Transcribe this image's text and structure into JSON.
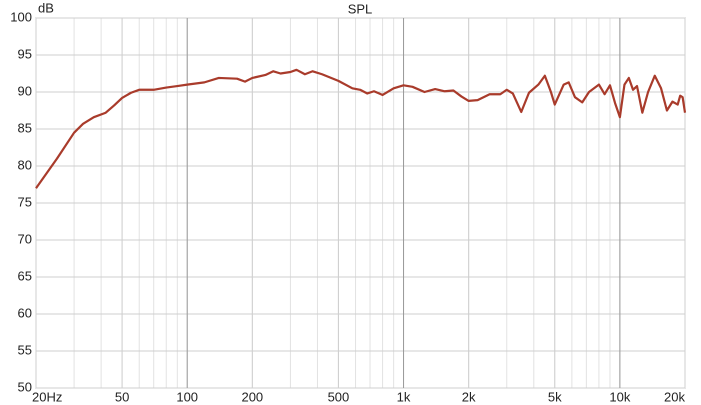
{
  "chart_data": {
    "type": "line",
    "title": "SPL",
    "y_label": "dB",
    "x_scale": "log",
    "grid": true,
    "minor_grid": true,
    "xlim": [
      20,
      20000
    ],
    "ylim": [
      50,
      100
    ],
    "xticks": [
      {
        "value": 20,
        "label": "20Hz"
      },
      50,
      100,
      200,
      500,
      {
        "value": 1000,
        "label": "1k"
      },
      {
        "value": 2000,
        "label": "2k"
      },
      {
        "value": 5000,
        "label": "5k"
      },
      {
        "value": 10000,
        "label": "10k"
      },
      {
        "value": 20000,
        "label": "20k"
      }
    ],
    "yticks": [
      50,
      55,
      60,
      65,
      70,
      75,
      80,
      85,
      90,
      95,
      100
    ],
    "x": [
      20,
      25,
      30,
      33,
      37,
      42,
      46,
      50,
      55,
      60,
      70,
      80,
      90,
      100,
      120,
      140,
      170,
      185,
      200,
      230,
      250,
      270,
      300,
      320,
      350,
      380,
      420,
      500,
      580,
      630,
      680,
      730,
      800,
      900,
      1000,
      1100,
      1250,
      1400,
      1550,
      1700,
      1850,
      2000,
      2200,
      2500,
      2800,
      3000,
      3200,
      3500,
      3800,
      4200,
      4500,
      4800,
      5000,
      5500,
      5800,
      6200,
      6700,
      7200,
      8000,
      8500,
      9000,
      9500,
      10000,
      10500,
      11000,
      11500,
      12000,
      12700,
      13500,
      14500,
      15500,
      16500,
      17500,
      18500,
      19000,
      19500,
      20000
    ],
    "series": [
      {
        "color": "#a93b2b",
        "values": [
          77,
          81,
          84.5,
          85.7,
          86.6,
          87.2,
          88.2,
          89.2,
          89.9,
          90.3,
          90.3,
          90.6,
          90.8,
          91.0,
          91.3,
          91.9,
          91.8,
          91.4,
          91.9,
          92.3,
          92.8,
          92.5,
          92.7,
          93.0,
          92.4,
          92.8,
          92.4,
          91.5,
          90.5,
          90.3,
          89.8,
          90.1,
          89.6,
          90.5,
          90.9,
          90.7,
          90.0,
          90.4,
          90.1,
          90.2,
          89.4,
          88.8,
          88.9,
          89.7,
          89.7,
          90.3,
          89.8,
          87.3,
          89.9,
          91.0,
          92.2,
          90.0,
          88.3,
          91.0,
          91.3,
          89.3,
          88.6,
          90.0,
          91.0,
          89.7,
          90.9,
          88.5,
          86.6,
          91.0,
          91.9,
          90.3,
          90.8,
          87.2,
          90.0,
          92.2,
          90.5,
          87.5,
          88.7,
          88.3,
          89.5,
          89.3,
          87.2
        ]
      }
    ]
  }
}
